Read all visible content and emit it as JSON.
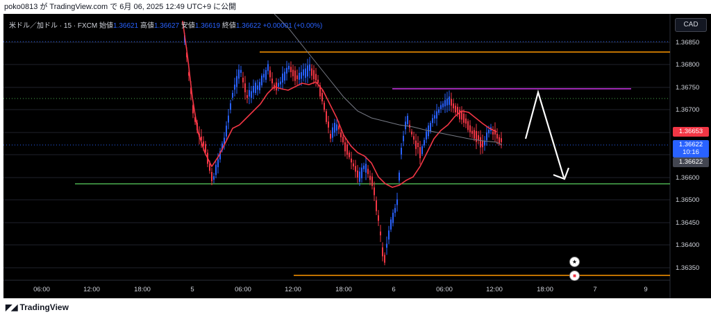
{
  "header": {
    "text": "poko0813 が TradingView.com で 6月 06, 2025 12:49 UTC+9 に公開"
  },
  "legend": {
    "symbol": "米ドル／加ドル · 15 · FXCM",
    "open_label": "始値",
    "open": "1.36621",
    "high_label": "高値",
    "high": "1.36627",
    "low_label": "安値",
    "low": "1.36619",
    "close_label": "終値",
    "close": "1.36622",
    "change": "+0.00001 (+0.00%)"
  },
  "currency_button": "CAD",
  "price_axis": [
    "1.36850",
    "1.36800",
    "1.36750",
    "1.36700",
    "1.36650",
    "1.36600",
    "1.36550",
    "1.36500",
    "1.36450",
    "1.36400",
    "1.36350"
  ],
  "price_badges": {
    "red": "1.36653",
    "blue_price": "1.36622",
    "blue_countdown": "10:16",
    "gray": "1.36622"
  },
  "time_axis": [
    "06:00",
    "12:00",
    "18:00",
    "5",
    "06:00",
    "12:00",
    "18:00",
    "6",
    "06:00",
    "12:00",
    "18:00",
    "7",
    "9"
  ],
  "footer": {
    "brand": "TradingView"
  },
  "colors": {
    "bull": "#2962ff",
    "bear": "#f23645",
    "ma": "#f23645",
    "orange": "#ff9800",
    "green": "#4caf50",
    "purple": "#9c27b0",
    "background": "#000000"
  }
}
